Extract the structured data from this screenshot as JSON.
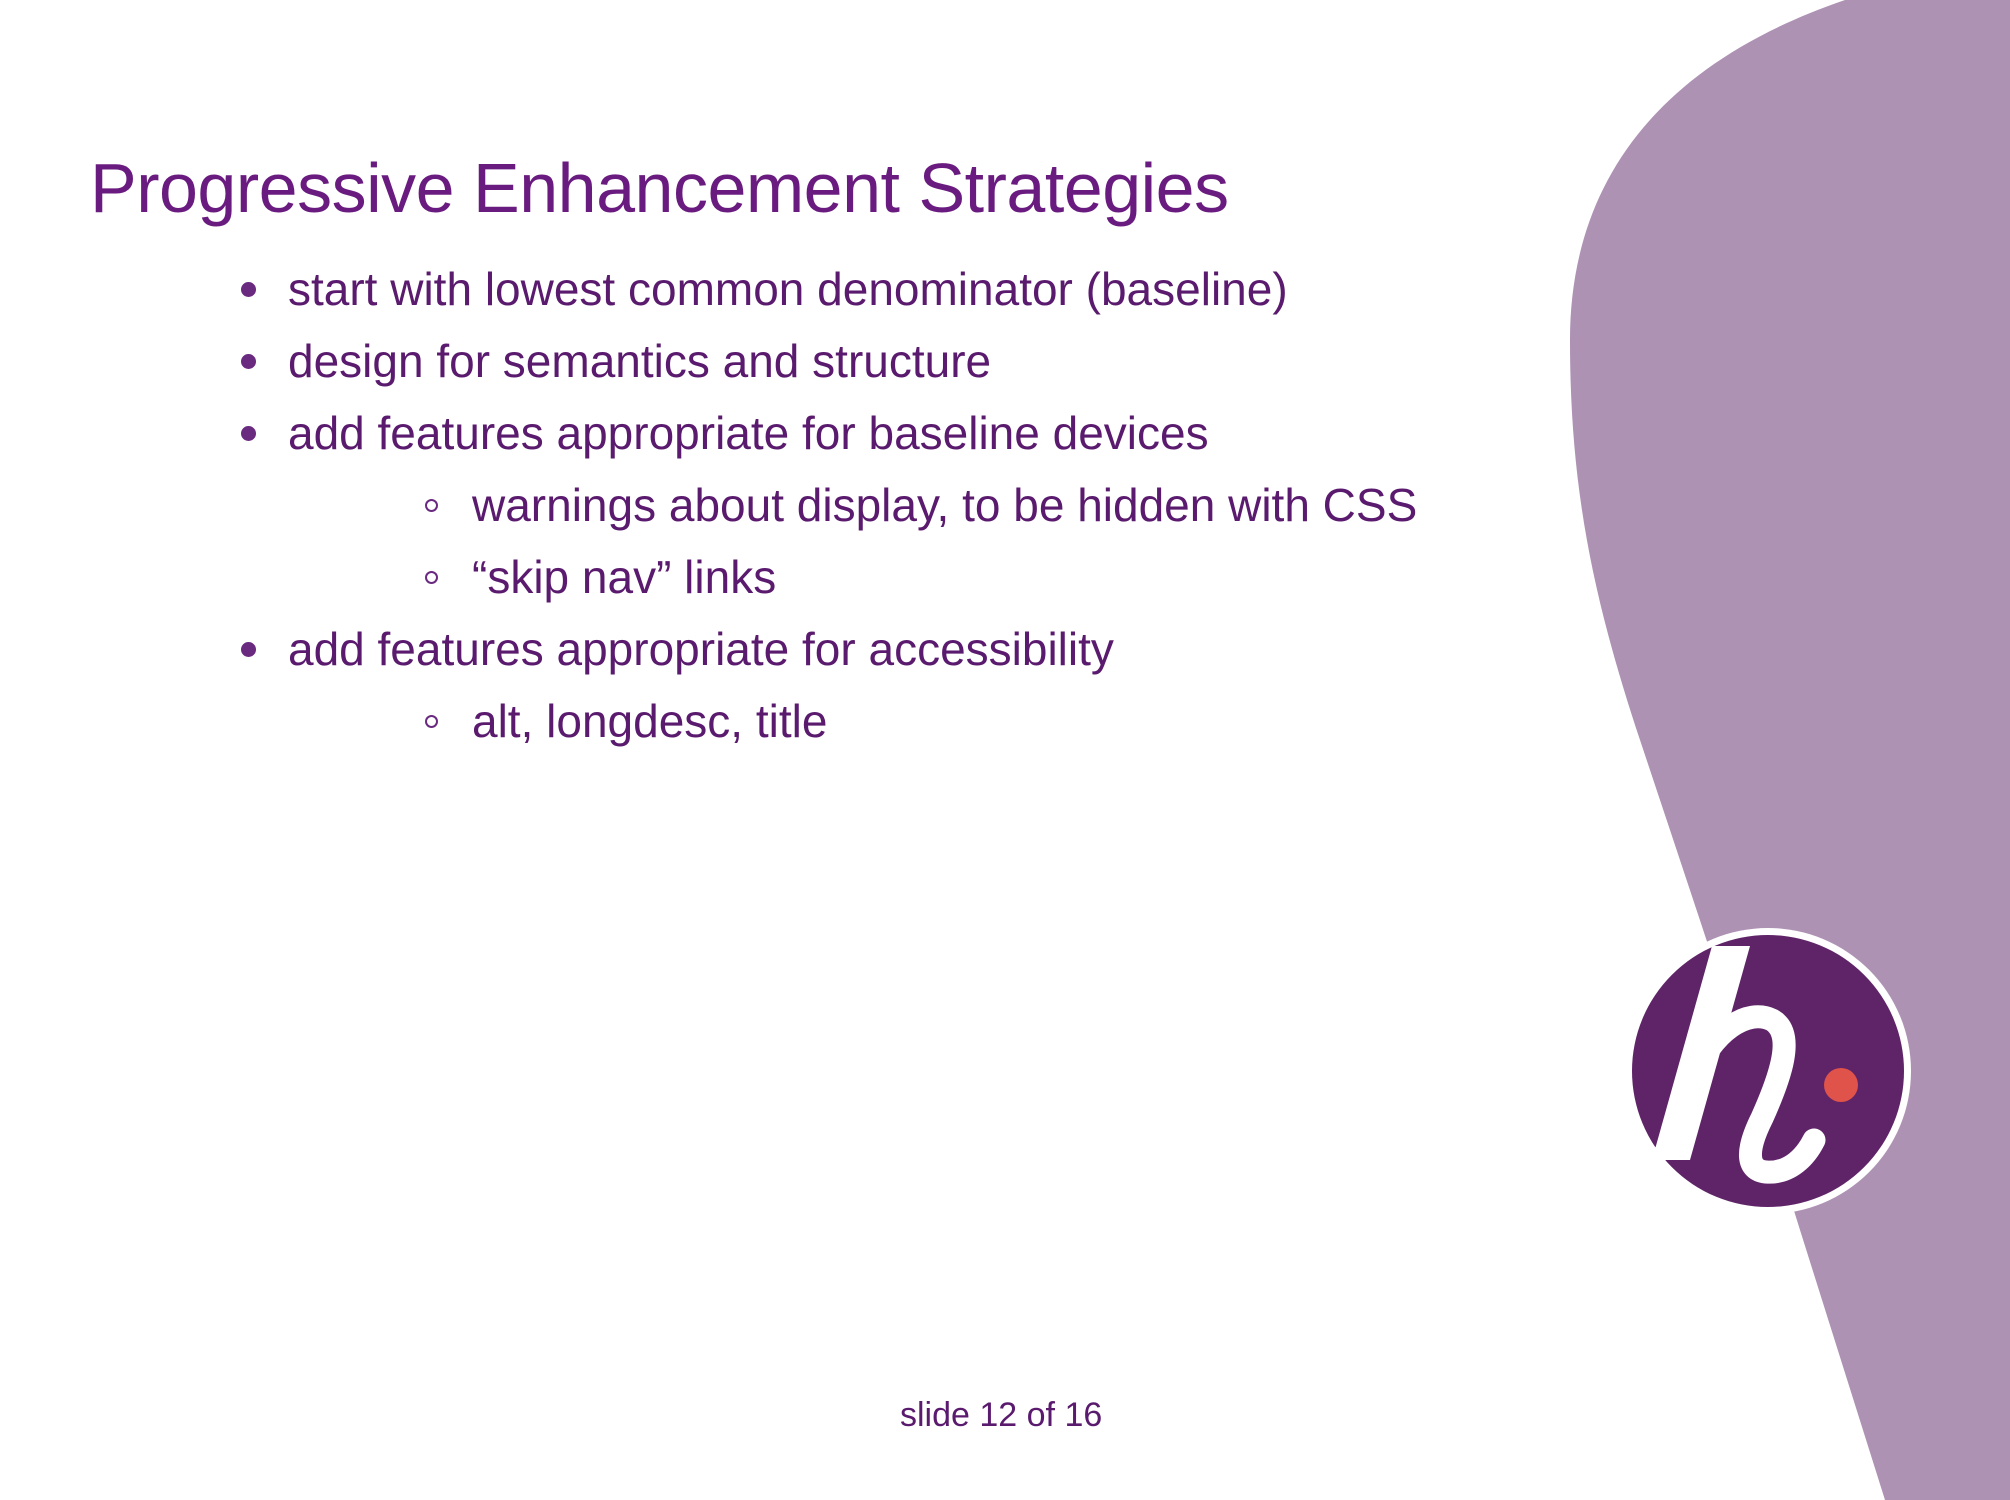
{
  "slide": {
    "title": "Progressive Enhancement Strategies",
    "bullets": [
      {
        "level": 1,
        "text": "start with lowest common denominator (baseline)"
      },
      {
        "level": 1,
        "text": "design for semantics and structure"
      },
      {
        "level": 1,
        "text": "add features appropriate for baseline devices"
      },
      {
        "level": 2,
        "text": "warnings about display, to be hidden with CSS"
      },
      {
        "level": 2,
        "text": "“skip nav” links"
      },
      {
        "level": 1,
        "text": "add features appropriate for accessibility"
      },
      {
        "level": 2,
        "text": "alt, longdesc, title"
      }
    ],
    "footer": "slide 12 of 16"
  },
  "logo": {
    "icon": "h-logo-icon",
    "letter": "h"
  },
  "colors": {
    "title": "#6a1b7f",
    "text": "#5a1a6e",
    "bullet": "#6a2a80",
    "decoration": "#ae92b4",
    "logo_circle": "#5f2468",
    "logo_ring": "#ffffff",
    "logo_dot": "#e0534a"
  }
}
